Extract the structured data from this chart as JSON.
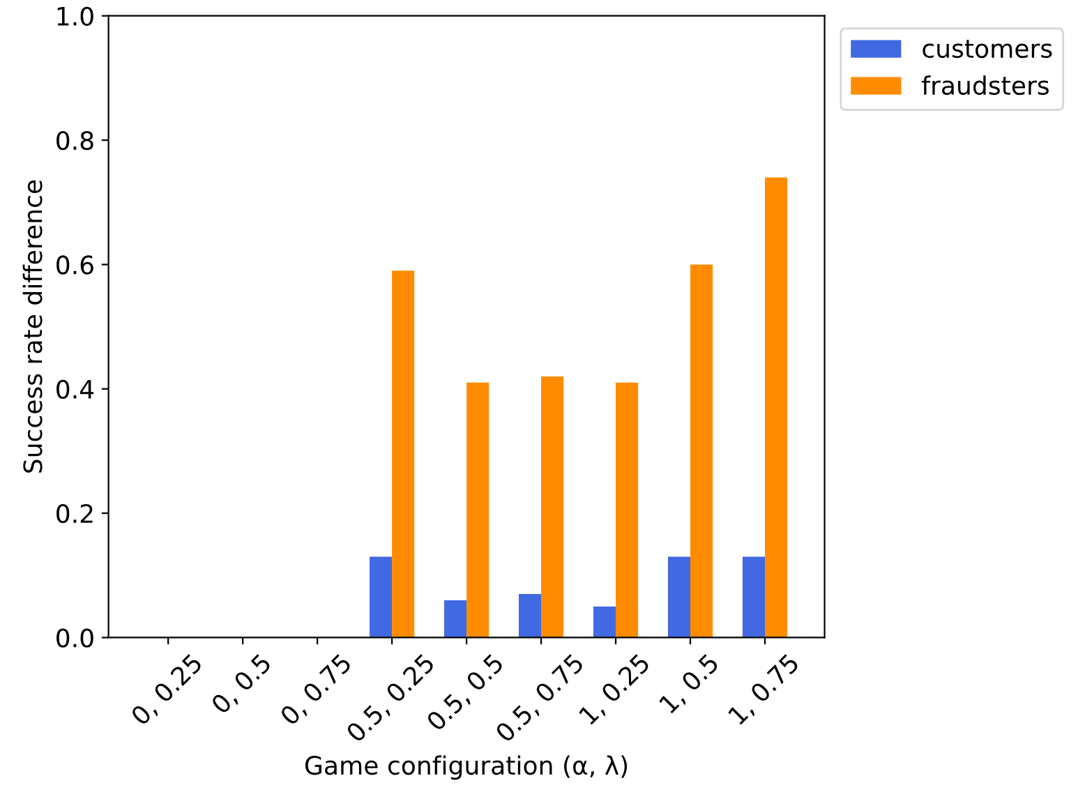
{
  "chart_data": {
    "type": "bar",
    "xlabel": "Game configuration (α, λ)",
    "ylabel": "Success rate difference",
    "categories": [
      "0, 0.25",
      "0, 0.5",
      "0, 0.75",
      "0.5, 0.25",
      "0.5, 0.5",
      "0.5, 0.75",
      "1, 0.25",
      "1, 0.5",
      "1, 0.75"
    ],
    "series": [
      {
        "name": "customers",
        "color": "#4169e1",
        "values": [
          0,
          0,
          0,
          0.13,
          0.06,
          0.07,
          0.05,
          0.13,
          0.13
        ]
      },
      {
        "name": "fraudsters",
        "color": "#ff8c00",
        "values": [
          0,
          0,
          0,
          0.59,
          0.41,
          0.42,
          0.41,
          0.6,
          0.74
        ]
      }
    ],
    "ylim": [
      0,
      1.0
    ],
    "yticks": [
      {
        "value": 0,
        "label": "0.0"
      },
      0.2,
      0.4,
      0.6,
      0.8,
      {
        "value": 1,
        "label": "1.0"
      }
    ],
    "legend": "top right",
    "grid": false
  }
}
